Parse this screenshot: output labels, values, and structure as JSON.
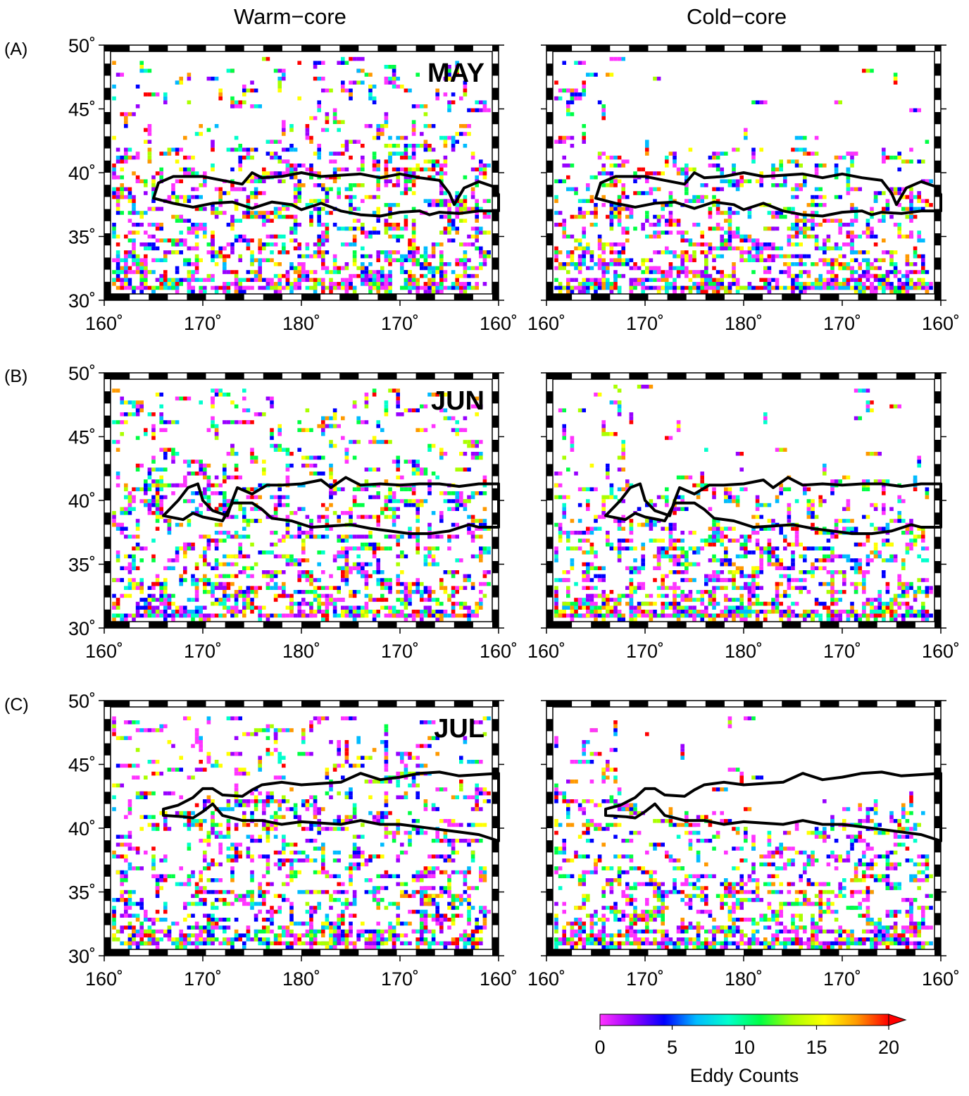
{
  "columns": [
    "Warm−core",
    "Cold−core"
  ],
  "rows": [
    {
      "tag": "(A)",
      "month": "MAY"
    },
    {
      "tag": "(B)",
      "month": "JUN"
    },
    {
      "tag": "(C)",
      "month": "JUL"
    }
  ],
  "x_tick_labels": [
    "160˚",
    "170˚",
    "180˚",
    "170˚",
    "160˚"
  ],
  "y_tick_labels": [
    "30˚",
    "35˚",
    "40˚",
    "45˚",
    "50˚"
  ],
  "map_extent": {
    "lon": [
      160,
      200
    ],
    "lat": [
      30,
      50
    ],
    "lon_note": "160E to 160W across the dateline"
  },
  "colorbar": {
    "label": "Eddy Counts",
    "ticks": [
      "0",
      "5",
      "10",
      "15",
      "20"
    ],
    "range": [
      0,
      20
    ],
    "colors": [
      "#ff33ff",
      "#9900ff",
      "#0000ff",
      "#00bbff",
      "#00ffcc",
      "#00ff44",
      "#aaff00",
      "#ffff00",
      "#ff9900",
      "#ff0000"
    ]
  },
  "front_outlines": {
    "MAY": {
      "north": [
        [
          165,
          38
        ],
        [
          165.5,
          39.2
        ],
        [
          167,
          39.7
        ],
        [
          170,
          39.7
        ],
        [
          172,
          39.4
        ],
        [
          174,
          39.1
        ],
        [
          175,
          40
        ],
        [
          176,
          39.6
        ],
        [
          178,
          39.7
        ],
        [
          180,
          40
        ],
        [
          182,
          39.7
        ],
        [
          184,
          39.8
        ],
        [
          186,
          39.9
        ],
        [
          188,
          39.6
        ],
        [
          190,
          39.9
        ],
        [
          192,
          39.6
        ],
        [
          194,
          39.4
        ],
        [
          195,
          38.4
        ],
        [
          195.5,
          37.5
        ],
        [
          196.5,
          38.8
        ],
        [
          198,
          39.3
        ],
        [
          199.5,
          38.9
        ],
        [
          200,
          38.3
        ]
      ],
      "south": [
        [
          165,
          38
        ],
        [
          167,
          37.6
        ],
        [
          169,
          37.3
        ],
        [
          171,
          37.6
        ],
        [
          173,
          37.7
        ],
        [
          175,
          37.2
        ],
        [
          177,
          37.7
        ],
        [
          179,
          37.5
        ],
        [
          180,
          37.1
        ],
        [
          182,
          37.6
        ],
        [
          184,
          37
        ],
        [
          186,
          36.7
        ],
        [
          188,
          36.6
        ],
        [
          190,
          36.9
        ],
        [
          192,
          37
        ],
        [
          193,
          36.7
        ],
        [
          194,
          36.9
        ],
        [
          196,
          36.8
        ],
        [
          198,
          37
        ],
        [
          200,
          37
        ]
      ]
    },
    "JUN": {
      "north": [
        [
          166,
          38.8
        ],
        [
          167.5,
          40
        ],
        [
          168.5,
          41
        ],
        [
          169.5,
          41.3
        ],
        [
          170,
          40
        ],
        [
          171,
          39.2
        ],
        [
          172.5,
          38.8
        ],
        [
          173,
          40
        ],
        [
          173.5,
          41
        ],
        [
          175,
          40.5
        ],
        [
          176.5,
          41.2
        ],
        [
          178,
          41.2
        ],
        [
          180,
          41.3
        ],
        [
          182,
          41.6
        ],
        [
          183,
          41
        ],
        [
          184.5,
          41.8
        ],
        [
          186,
          41.2
        ],
        [
          188,
          41.3
        ],
        [
          190,
          41.2
        ],
        [
          192,
          41.3
        ],
        [
          194,
          41.3
        ],
        [
          196,
          41.1
        ],
        [
          198,
          41.3
        ],
        [
          200,
          41.3
        ]
      ],
      "south": [
        [
          166,
          38.8
        ],
        [
          168,
          38.5
        ],
        [
          169,
          39
        ],
        [
          170,
          38.7
        ],
        [
          172,
          38.4
        ],
        [
          173,
          39.8
        ],
        [
          175,
          39.8
        ],
        [
          176,
          39.3
        ],
        [
          177,
          38.6
        ],
        [
          179,
          38.4
        ],
        [
          181,
          37.9
        ],
        [
          183,
          38
        ],
        [
          185,
          38.1
        ],
        [
          187,
          37.8
        ],
        [
          189,
          37.6
        ],
        [
          191,
          37.4
        ],
        [
          193,
          37.4
        ],
        [
          195,
          37.6
        ],
        [
          197,
          38.1
        ],
        [
          198,
          37.9
        ],
        [
          200,
          37.9
        ]
      ]
    },
    "JUL": {
      "north": [
        [
          166,
          41.5
        ],
        [
          167.5,
          41.8
        ],
        [
          169,
          42.4
        ],
        [
          170,
          43.1
        ],
        [
          171,
          43.1
        ],
        [
          172,
          42.6
        ],
        [
          174,
          42.5
        ],
        [
          175,
          43
        ],
        [
          176,
          43.4
        ],
        [
          178,
          43.6
        ],
        [
          180,
          43.4
        ],
        [
          182,
          43.5
        ],
        [
          184,
          43.6
        ],
        [
          186,
          44.3
        ],
        [
          188,
          43.8
        ],
        [
          190,
          44
        ],
        [
          192,
          44.3
        ],
        [
          194,
          44.4
        ],
        [
          196,
          44.1
        ],
        [
          198,
          44.2
        ],
        [
          200,
          44.3
        ]
      ],
      "south": [
        [
          166,
          41
        ],
        [
          168,
          40.9
        ],
        [
          169,
          40.8
        ],
        [
          170,
          41.3
        ],
        [
          171,
          41.9
        ],
        [
          172,
          41
        ],
        [
          174,
          40.6
        ],
        [
          176,
          40.6
        ],
        [
          178,
          40.3
        ],
        [
          180,
          40.5
        ],
        [
          182,
          40.4
        ],
        [
          184,
          40.3
        ],
        [
          186,
          40.6
        ],
        [
          188,
          40.3
        ],
        [
          190,
          40.3
        ],
        [
          192,
          40.1
        ],
        [
          194,
          39.9
        ],
        [
          196,
          39.7
        ],
        [
          198,
          39.5
        ],
        [
          200,
          39
        ]
      ]
    }
  }
}
